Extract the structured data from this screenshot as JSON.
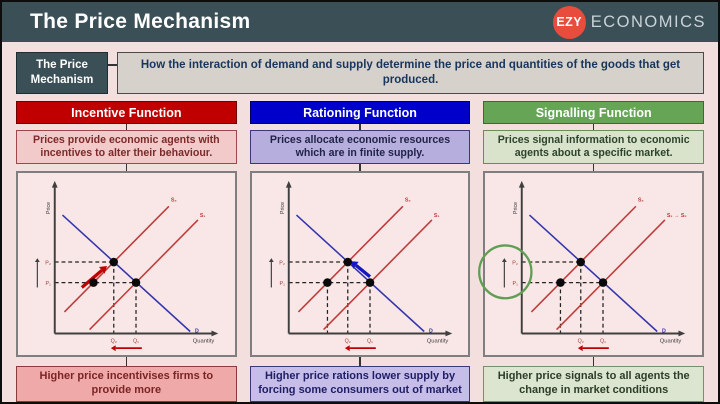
{
  "header": {
    "title": "The Price Mechanism",
    "logo": {
      "circle_text": "EZY",
      "brand_text": "ECONOMICS",
      "circle_color": "#e84c3d"
    }
  },
  "intro": {
    "label": "The Price Mechanism",
    "description": "How the interaction of demand and supply determine the price and quantities of the goods that get produced."
  },
  "diagram_colors": {
    "demand": "#3434ad",
    "supply": "#c03a3a",
    "dots": "#0a0a0a",
    "dashed": "#222222",
    "axis": "#3f3f3f",
    "axis_text": "#3c3c3c",
    "price_qty_labels": "#a03c3c",
    "highlight_circle": "#5f9e53",
    "quantity_arrow": "#c00000"
  },
  "columns": [
    {
      "id": "incentive",
      "title": "Incentive Function",
      "description": "Prices provide economic agents with incentives to alter their behaviour.",
      "footer": {
        "pre": "Higher price ",
        "bold": "incentivises",
        "post": " firms to provide more"
      },
      "colors": {
        "header_bg": "#c00000",
        "header_border": "#6e0000",
        "desc_bg": "#f2caca",
        "desc_border": "#9c4848",
        "desc_text": "#7c2a2a",
        "ft_bg": "#efa9a9",
        "ft_border": "#8b3a3a",
        "ft_text": "#7a2424"
      },
      "diagram": {
        "type": "supply-demand",
        "price_axis_label": "Price",
        "quantity_axis_label": "Quantity",
        "demand_label": "D",
        "supply_shifted_label": "S₂",
        "supply_original_label": "S₁",
        "price_new_label": "P₂",
        "price_old_label": "P₁",
        "quantity_new_label": "Q₂",
        "quantity_old_label": "Q₁",
        "movement_arrow": {
          "direction": "up-right",
          "color": "#c00000"
        },
        "left_dot_dashed_line": false,
        "price_highlight_circle": false
      }
    },
    {
      "id": "rationing",
      "title": "Rationing Function",
      "description": "Prices allocate economic resources which are in finite supply.",
      "footer": {
        "pre": "Higher price ",
        "bold": "rations",
        "post": " lower supply by forcing some consumers out of market"
      },
      "colors": {
        "header_bg": "#0000cb",
        "header_border": "#000060",
        "desc_bg": "#b6aedd",
        "desc_border": "#39397a",
        "desc_text": "#1f2348",
        "ft_bg": "#c6bde8",
        "ft_border": "#39397a",
        "ft_text": "#1f1f66"
      },
      "diagram": {
        "type": "supply-demand",
        "price_axis_label": "Price",
        "quantity_axis_label": "Quantity",
        "demand_label": "D",
        "supply_shifted_label": "S₂",
        "supply_original_label": "S₁",
        "price_new_label": "P₂",
        "price_old_label": "P₁",
        "quantity_new_label": "Q₂",
        "quantity_old_label": "Q₁",
        "movement_arrow": {
          "direction": "up-left",
          "color": "#1515c8"
        },
        "left_dot_dashed_line": true,
        "price_highlight_circle": false
      }
    },
    {
      "id": "signalling",
      "title": "Signalling Function",
      "description": "Prices signal information to economic agents about a specific market.",
      "footer": {
        "pre": "Higher price ",
        "bold": "signals",
        "post": " to all agents the change in market conditions"
      },
      "colors": {
        "header_bg": "#67a556",
        "header_border": "#3c6a30",
        "desc_bg": "#d9e3cb",
        "desc_border": "#6d8a5c",
        "desc_text": "#2c432c",
        "ft_bg": "#dbe5cf",
        "ft_border": "#75906a",
        "ft_text": "#2d3d2a"
      },
      "diagram": {
        "type": "supply-demand",
        "price_axis_label": "Price",
        "quantity_axis_label": "Quantity",
        "demand_label": "D",
        "supply_shifted_label": "S₂",
        "supply_original_label": "S₁ → S₂",
        "price_new_label": "P₂",
        "price_old_label": "P₁",
        "quantity_new_label": "Q₂",
        "quantity_old_label": "Q₁",
        "movement_arrow": null,
        "left_dot_dashed_line": true,
        "price_highlight_circle": true
      }
    }
  ]
}
